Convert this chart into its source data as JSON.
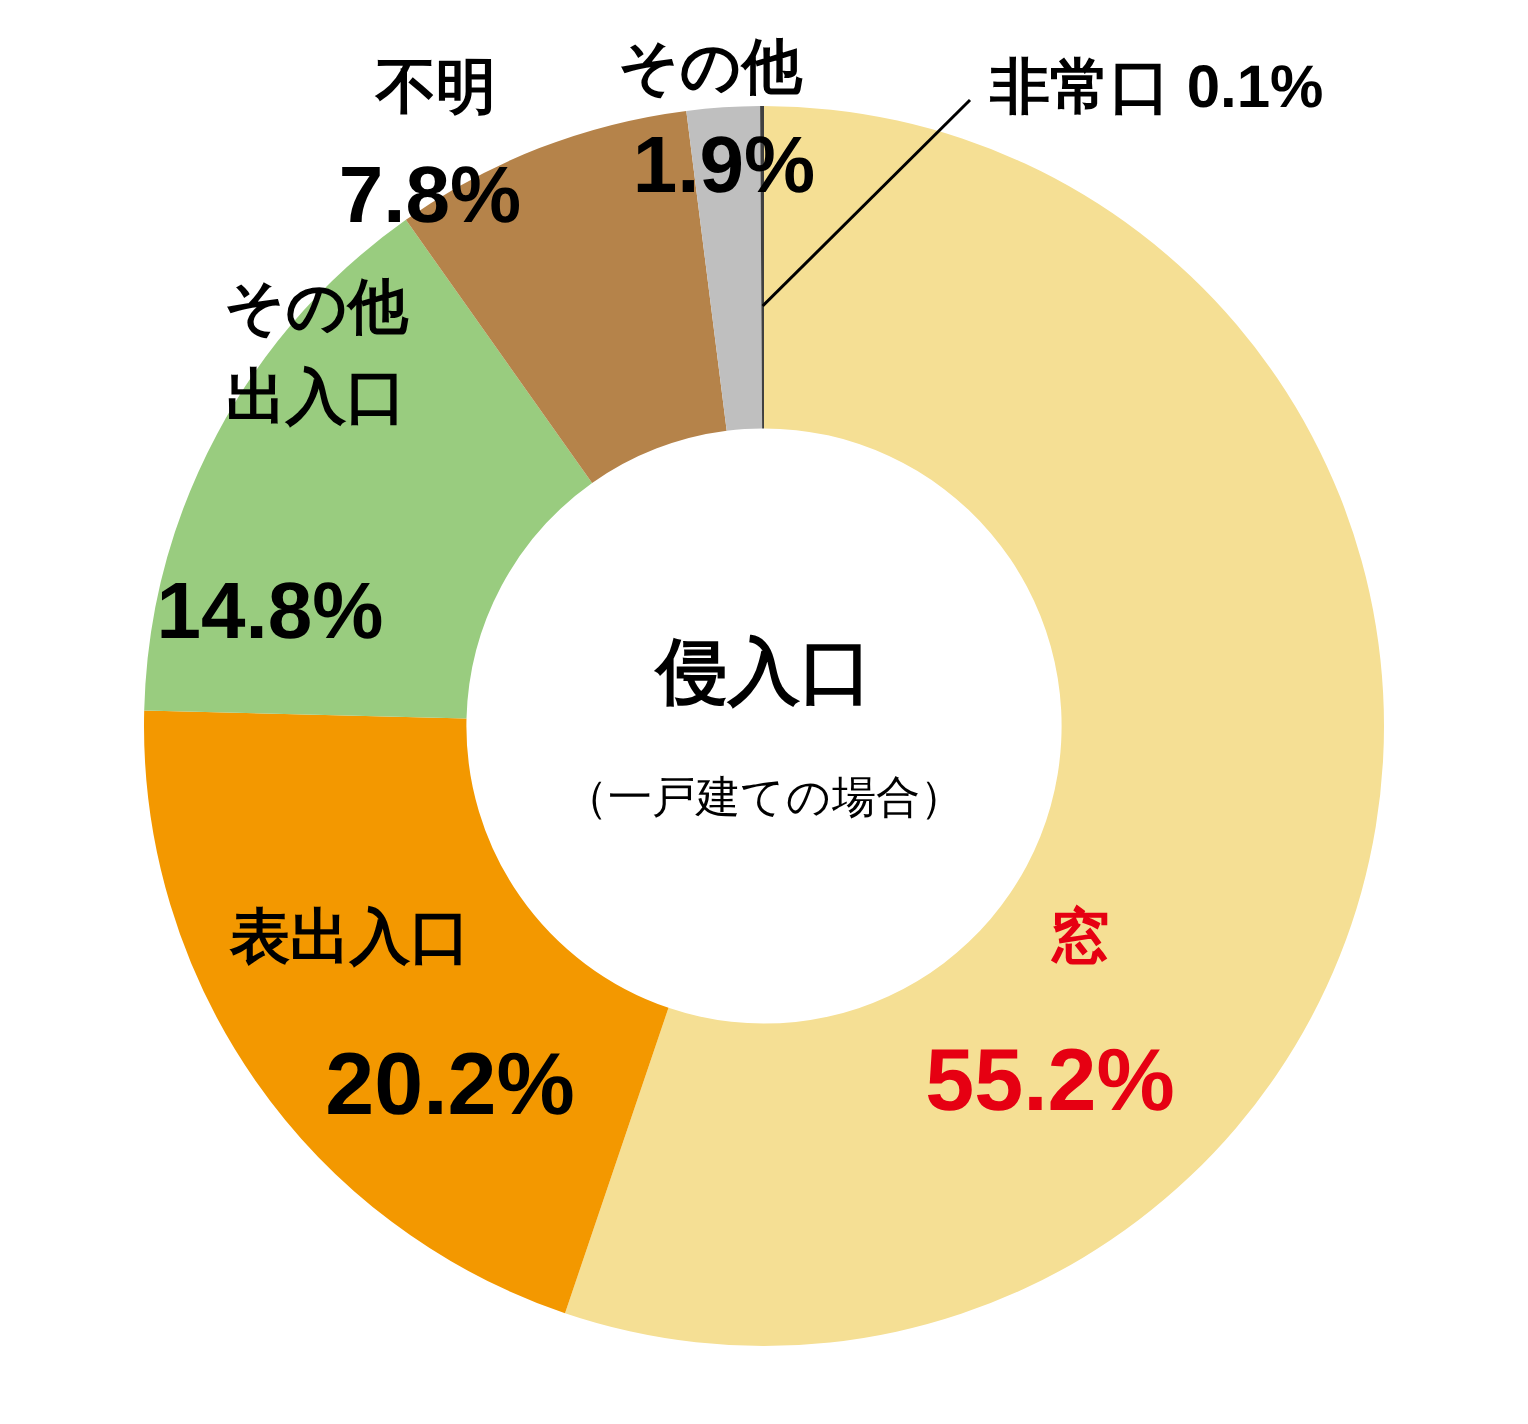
{
  "chart_data": {
    "type": "donut",
    "title": "侵入口",
    "subtitle": "（一戸建ての場合）",
    "categories": [
      "窓",
      "表出入口",
      "その他出入口",
      "不明",
      "その他",
      "非常口"
    ],
    "values": [
      55.2,
      20.2,
      14.8,
      7.8,
      1.9,
      0.1
    ],
    "colors": [
      "#f5df94",
      "#f39800",
      "#99cc7f",
      "#b5834a",
      "#bfbfbf",
      "#404040"
    ],
    "value_labels": [
      "55.2%",
      "20.2%",
      "14.8%",
      "7.8%",
      "1.9%",
      "0.1%"
    ],
    "legend": false
  }
}
